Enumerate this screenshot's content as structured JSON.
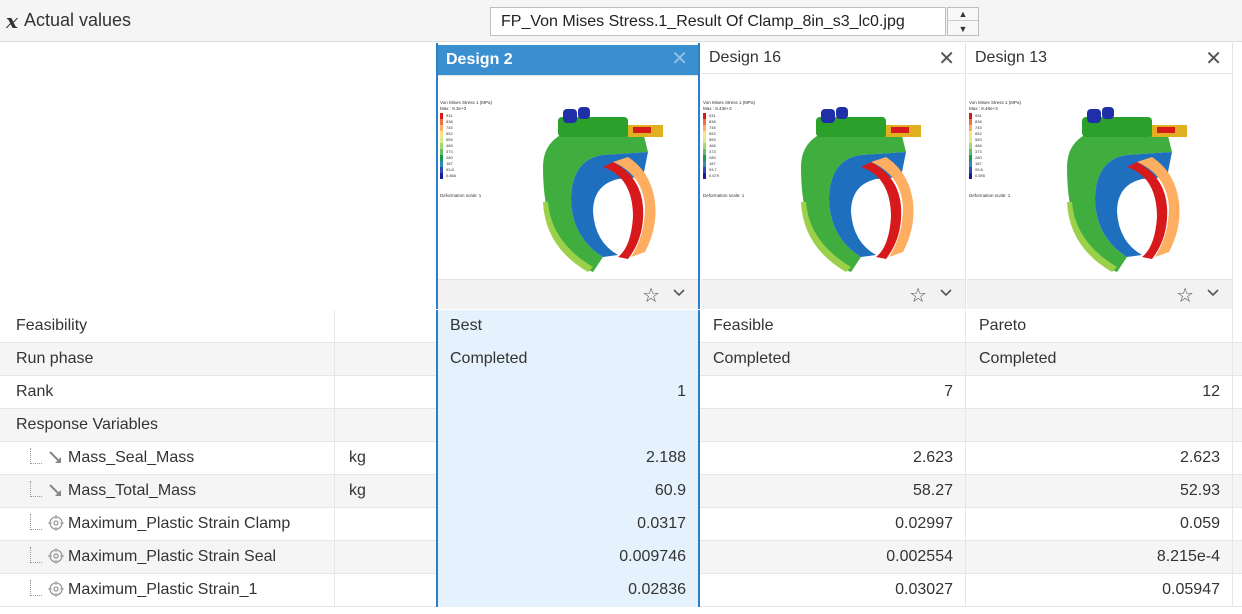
{
  "toolbar": {
    "title": "Actual values",
    "file_value": "FP_Von Mises Stress.1_Result Of Clamp_8in_s3_lc0.jpg"
  },
  "designs": [
    {
      "name": "Design 2",
      "legend_title": "Von Mises Stress 1 (MPa)",
      "legend_max": "Max : 9.3e+3",
      "legend_values": [
        "931",
        "838",
        "745",
        "652",
        "559",
        "466",
        "373",
        "280",
        "187",
        "93.8",
        "0.866"
      ],
      "legend_foot": "Deformation scale: 1"
    },
    {
      "name": "Design 16",
      "legend_title": "Von Mises Stress 1 (MPa)",
      "legend_max": "Max : 8.43e+3",
      "legend_values": [
        "931",
        "838",
        "745",
        "652",
        "559",
        "466",
        "373",
        "280",
        "187",
        "93.7",
        "0.679"
      ],
      "legend_foot": "Deformation scale: 1"
    },
    {
      "name": "Design 13",
      "legend_title": "Von Mises Stress 1 (MPa)",
      "legend_max": "Max : 8.48e+3",
      "legend_values": [
        "931",
        "838",
        "745",
        "652",
        "559",
        "466",
        "373",
        "280",
        "187",
        "93.8",
        "0.595"
      ],
      "legend_foot": "Deformation scale: 1"
    }
  ],
  "rows": [
    {
      "name": "Feasibility",
      "unit": "",
      "values": [
        "Best",
        "Feasible",
        "Pareto"
      ]
    },
    {
      "name": "Run phase",
      "unit": "",
      "values": [
        "Completed",
        "Completed",
        "Completed"
      ]
    },
    {
      "name": "Rank",
      "unit": "",
      "values": [
        "1",
        "7",
        "12"
      ]
    },
    {
      "name": "Response Variables",
      "unit": "",
      "values": [
        "",
        "",
        ""
      ]
    },
    {
      "name": "Mass_Seal_Mass",
      "unit": "kg",
      "values": [
        "2.188",
        "2.623",
        "2.623"
      ]
    },
    {
      "name": "Mass_Total_Mass",
      "unit": "kg",
      "values": [
        "60.9",
        "58.27",
        "52.93"
      ]
    },
    {
      "name": "Maximum_Plastic Strain Clamp",
      "unit": "",
      "values": [
        "0.0317",
        "0.02997",
        "0.059"
      ]
    },
    {
      "name": "Maximum_Plastic Strain Seal",
      "unit": "",
      "values": [
        "0.009746",
        "0.002554",
        "8.215e-4"
      ]
    },
    {
      "name": "Maximum_Plastic Strain_1",
      "unit": "",
      "values": [
        "0.02836",
        "0.03027",
        "0.05947"
      ]
    }
  ],
  "colors": {
    "accent": "#3a8fd0",
    "selected_bg": "#e5f1fc"
  }
}
